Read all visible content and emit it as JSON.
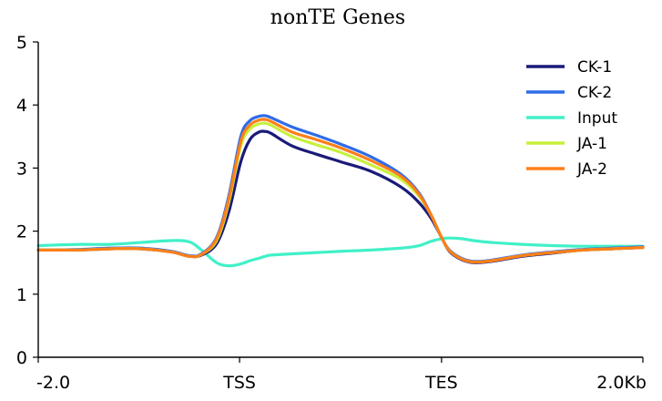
{
  "chart_data": {
    "type": "line",
    "title": "nonTE Genes",
    "xlabel": "",
    "ylabel": "",
    "ylim": [
      0,
      5
    ],
    "xlim": [
      0,
      100
    ],
    "y_ticks": [
      0,
      1,
      2,
      3,
      4,
      5
    ],
    "x_ticks": [
      {
        "position": 0,
        "label": "-2.0"
      },
      {
        "position": 33.3,
        "label": "TSS"
      },
      {
        "position": 66.7,
        "label": "TES"
      },
      {
        "position": 100,
        "label": "2.0Kb"
      }
    ],
    "legend_position": "top-right",
    "grid": false,
    "x": [
      0,
      3,
      7,
      12,
      17,
      22,
      25,
      27,
      29.5,
      31.5,
      33.5,
      35,
      36.5,
      37.5,
      38.5,
      42,
      46,
      50,
      55,
      60,
      63,
      65,
      66.7,
      68,
      70,
      72,
      75,
      80,
      85,
      90,
      95,
      100
    ],
    "series": [
      {
        "name": "CK-1",
        "color": "#1a1a7a",
        "values": [
          1.7,
          1.7,
          1.7,
          1.72,
          1.72,
          1.67,
          1.6,
          1.62,
          1.8,
          2.3,
          3.1,
          3.45,
          3.57,
          3.58,
          3.55,
          3.35,
          3.22,
          3.1,
          2.95,
          2.7,
          2.45,
          2.2,
          1.9,
          1.68,
          1.55,
          1.5,
          1.52,
          1.6,
          1.65,
          1.7,
          1.72,
          1.74
        ]
      },
      {
        "name": "CK-2",
        "color": "#2f6be8",
        "values": [
          1.7,
          1.7,
          1.71,
          1.73,
          1.73,
          1.68,
          1.61,
          1.64,
          1.9,
          2.55,
          3.5,
          3.75,
          3.82,
          3.83,
          3.8,
          3.65,
          3.52,
          3.38,
          3.18,
          2.9,
          2.6,
          2.25,
          1.9,
          1.7,
          1.57,
          1.52,
          1.54,
          1.62,
          1.67,
          1.71,
          1.73,
          1.75
        ]
      },
      {
        "name": "Input",
        "color": "#41f0c8",
        "values": [
          1.77,
          1.78,
          1.79,
          1.79,
          1.82,
          1.85,
          1.83,
          1.7,
          1.5,
          1.45,
          1.48,
          1.53,
          1.57,
          1.6,
          1.62,
          1.64,
          1.66,
          1.68,
          1.7,
          1.73,
          1.77,
          1.84,
          1.88,
          1.89,
          1.88,
          1.85,
          1.82,
          1.79,
          1.77,
          1.76,
          1.76,
          1.76
        ]
      },
      {
        "name": "JA-1",
        "color": "#c8f03c",
        "values": [
          1.7,
          1.7,
          1.7,
          1.72,
          1.72,
          1.67,
          1.6,
          1.63,
          1.85,
          2.45,
          3.35,
          3.62,
          3.7,
          3.71,
          3.68,
          3.5,
          3.37,
          3.25,
          3.05,
          2.82,
          2.55,
          2.25,
          1.9,
          1.69,
          1.56,
          1.51,
          1.53,
          1.61,
          1.66,
          1.7,
          1.72,
          1.74
        ]
      },
      {
        "name": "JA-2",
        "color": "#ff7f1a",
        "values": [
          1.7,
          1.7,
          1.7,
          1.72,
          1.72,
          1.67,
          1.6,
          1.63,
          1.88,
          2.5,
          3.42,
          3.68,
          3.76,
          3.77,
          3.74,
          3.57,
          3.45,
          3.32,
          3.12,
          2.87,
          2.58,
          2.25,
          1.9,
          1.69,
          1.56,
          1.51,
          1.53,
          1.61,
          1.66,
          1.7,
          1.72,
          1.74
        ]
      }
    ]
  }
}
